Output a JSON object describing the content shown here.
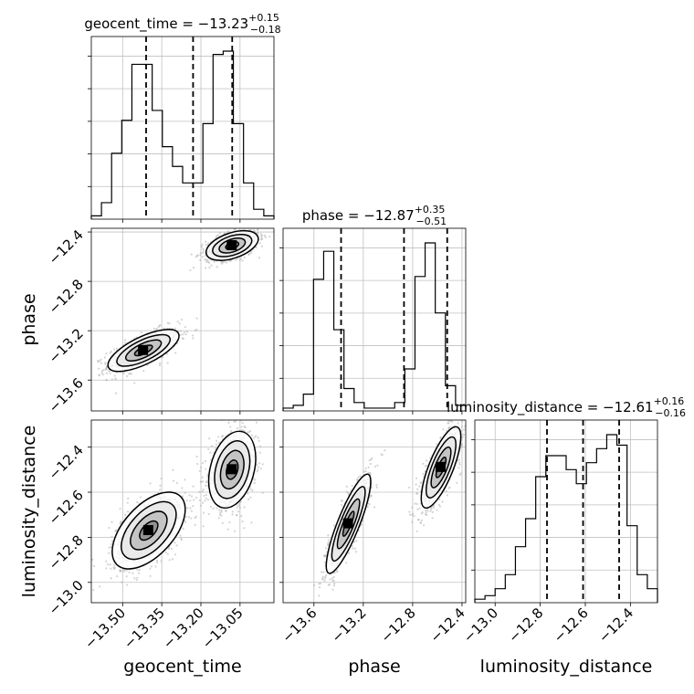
{
  "chart_data": {
    "type": "corner",
    "parameters": [
      {
        "key": "geocent_time",
        "label": "geocent_time",
        "title": {
          "prefix": "geocent_time = ",
          "value": "−13.23",
          "plus": "+0.15",
          "minus": "−0.18"
        },
        "range": [
          -13.62,
          -12.92
        ],
        "ticks": [
          -13.5,
          -13.35,
          -13.2,
          -13.05
        ],
        "tick_labels": [
          "−13.50",
          "−13.35",
          "−13.20",
          "−13.05"
        ],
        "quantiles": [
          -13.41,
          -13.23,
          -13.08
        ],
        "hist": [
          1,
          5,
          20,
          30,
          47,
          47,
          33,
          22,
          16,
          11,
          11,
          29,
          50,
          51,
          29,
          11,
          3,
          1
        ],
        "hist_max": 51
      },
      {
        "key": "phase",
        "label": "phase",
        "title": {
          "prefix": "phase = ",
          "value": "−12.87",
          "plus": "+0.35",
          "minus": "−0.51"
        },
        "range": [
          -13.85,
          -12.37
        ],
        "ticks": [
          -13.6,
          -13.2,
          -12.8,
          -12.4
        ],
        "tick_labels": [
          "−13.6",
          "−13.2",
          "−12.8",
          "−12.4"
        ],
        "quantiles": [
          -13.38,
          -12.87,
          -12.52
        ],
        "hist": [
          1,
          2,
          6,
          47,
          57,
          29,
          8,
          3,
          1,
          1,
          1,
          3,
          15,
          48,
          60,
          35,
          9,
          2
        ],
        "hist_max": 60
      },
      {
        "key": "luminosity_distance",
        "label": "luminosity_distance",
        "title": {
          "prefix": "luminosity_distance = ",
          "value": "−12.61",
          "plus": "+0.16",
          "minus": "−0.16"
        },
        "range": [
          -13.09,
          -12.28
        ],
        "ticks": [
          -13.0,
          -12.8,
          -12.6,
          -12.4
        ],
        "tick_labels": [
          "−13.0",
          "−12.8",
          "−12.6",
          "−12.4"
        ],
        "quantiles": [
          -12.77,
          -12.61,
          -12.45
        ],
        "hist": [
          1,
          2,
          4,
          8,
          16,
          24,
          36,
          42,
          42,
          38,
          34,
          40,
          44,
          48,
          45,
          22,
          8,
          4
        ],
        "hist_max": 48
      }
    ],
    "scatter_2d": [
      {
        "x": "geocent_time",
        "y": "phase",
        "clusters": [
          {
            "cx": -13.42,
            "cy": -13.36,
            "sx": 0.068,
            "sy": 0.085,
            "rho": 0.7,
            "weight": 1
          },
          {
            "cx": -13.08,
            "cy": -12.51,
            "sx": 0.05,
            "sy": 0.06,
            "rho": 0.45,
            "weight": 1
          }
        ]
      },
      {
        "x": "geocent_time",
        "y": "luminosity_distance",
        "clusters": [
          {
            "cx": -13.4,
            "cy": -12.77,
            "sx": 0.07,
            "sy": 0.085,
            "rho": 0.55,
            "weight": 1
          },
          {
            "cx": -13.08,
            "cy": -12.5,
            "sx": 0.045,
            "sy": 0.085,
            "rho": 0.3,
            "weight": 1
          }
        ]
      },
      {
        "x": "phase",
        "y": "luminosity_distance",
        "clusters": [
          {
            "cx": -13.32,
            "cy": -12.74,
            "sx": 0.09,
            "sy": 0.11,
            "rho": 0.85,
            "weight": 1
          },
          {
            "cx": -12.57,
            "cy": -12.49,
            "sx": 0.08,
            "sy": 0.09,
            "rho": 0.75,
            "weight": 1
          }
        ]
      }
    ],
    "contour_levels_sigma": [
      0.5,
      1.0,
      1.5,
      2.0
    ],
    "grid": true,
    "colors": {
      "hist": "#000000",
      "points": "#b0b0b0",
      "contour": "#000000",
      "quantile": "#000000",
      "grid": "#c0c0c0"
    }
  }
}
